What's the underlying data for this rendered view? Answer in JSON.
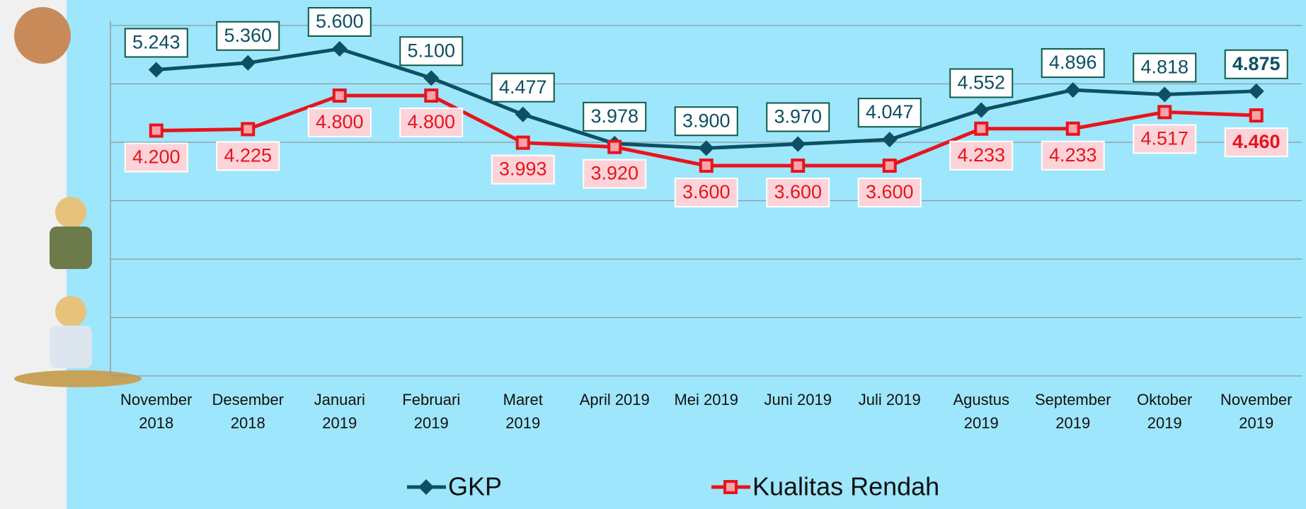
{
  "chart_data": {
    "type": "line",
    "categories": [
      "November\n2018",
      "Desember\n2018",
      "Januari\n2019",
      "Februari\n2019",
      "Maret\n2019",
      "April 2019",
      "Mei 2019",
      "Juni 2019",
      "Juli 2019",
      "Agustus\n2019",
      "September\n2019",
      "Oktober\n2019",
      "November\n2019"
    ],
    "series": [
      {
        "name": "GKP",
        "color": "#0d4f63",
        "marker": "diamond",
        "values": [
          5243,
          5360,
          5600,
          5100,
          4477,
          3978,
          3900,
          3970,
          4047,
          4552,
          4896,
          4818,
          4875
        ],
        "value_labels": [
          "5.243",
          "5.360",
          "5.600",
          "5.100",
          "4.477",
          "3.978",
          "3.900",
          "3.970",
          "4.047",
          "4.552",
          "4.896",
          "4.818",
          "4.875"
        ]
      },
      {
        "name": "Kualitas Rendah",
        "color": "#e8141c",
        "marker": "square",
        "values": [
          4200,
          4225,
          4800,
          4800,
          3993,
          3920,
          3600,
          3600,
          3600,
          4233,
          4233,
          4517,
          4460
        ],
        "value_labels": [
          "4.200",
          "4.225",
          "4.800",
          "4.800",
          "3.993",
          "3.920",
          "3.600",
          "3.600",
          "3.600",
          "4.233",
          "4.233",
          "4.517",
          "4.460"
        ]
      }
    ],
    "ylim": [
      0,
      6000
    ],
    "yticks": [
      0,
      1000,
      2000,
      3000,
      4000,
      5000,
      6000
    ],
    "grid": true,
    "legend": "bottom"
  }
}
